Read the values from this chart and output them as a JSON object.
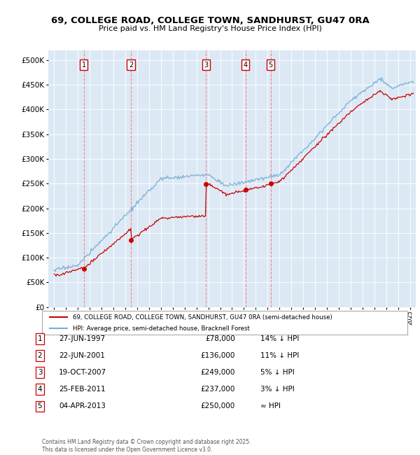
{
  "title": "69, COLLEGE ROAD, COLLEGE TOWN, SANDHURST, GU47 0RA",
  "subtitle": "Price paid vs. HM Land Registry's House Price Index (HPI)",
  "bg_color": "#dce9f5",
  "transactions": [
    {
      "num": 1,
      "date": "27-JUN-1997",
      "year": 1997.49,
      "price": 78000,
      "label": "14% ↓ HPI"
    },
    {
      "num": 2,
      "date": "22-JUN-2001",
      "year": 2001.47,
      "price": 136000,
      "label": "11% ↓ HPI"
    },
    {
      "num": 3,
      "date": "19-OCT-2007",
      "year": 2007.8,
      "price": 249000,
      "label": "5% ↓ HPI"
    },
    {
      "num": 4,
      "date": "25-FEB-2011",
      "year": 2011.15,
      "price": 237000,
      "label": "3% ↓ HPI"
    },
    {
      "num": 5,
      "date": "04-APR-2013",
      "year": 2013.25,
      "price": 250000,
      "label": "≈ HPI"
    }
  ],
  "legend_line1": "69, COLLEGE ROAD, COLLEGE TOWN, SANDHURST, GU47 0RA (semi-detached house)",
  "legend_line2": "HPI: Average price, semi-detached house, Bracknell Forest",
  "footer": "Contains HM Land Registry data © Crown copyright and database right 2025.\nThis data is licensed under the Open Government Licence v3.0.",
  "ylim": [
    0,
    520000
  ],
  "yticks": [
    0,
    50000,
    100000,
    150000,
    200000,
    250000,
    300000,
    350000,
    400000,
    450000,
    500000
  ],
  "xlim_start": 1994.5,
  "xlim_end": 2025.5,
  "red_line_color": "#cc0000",
  "blue_line_color": "#7aadd4",
  "transaction_dot_color": "#cc0000"
}
